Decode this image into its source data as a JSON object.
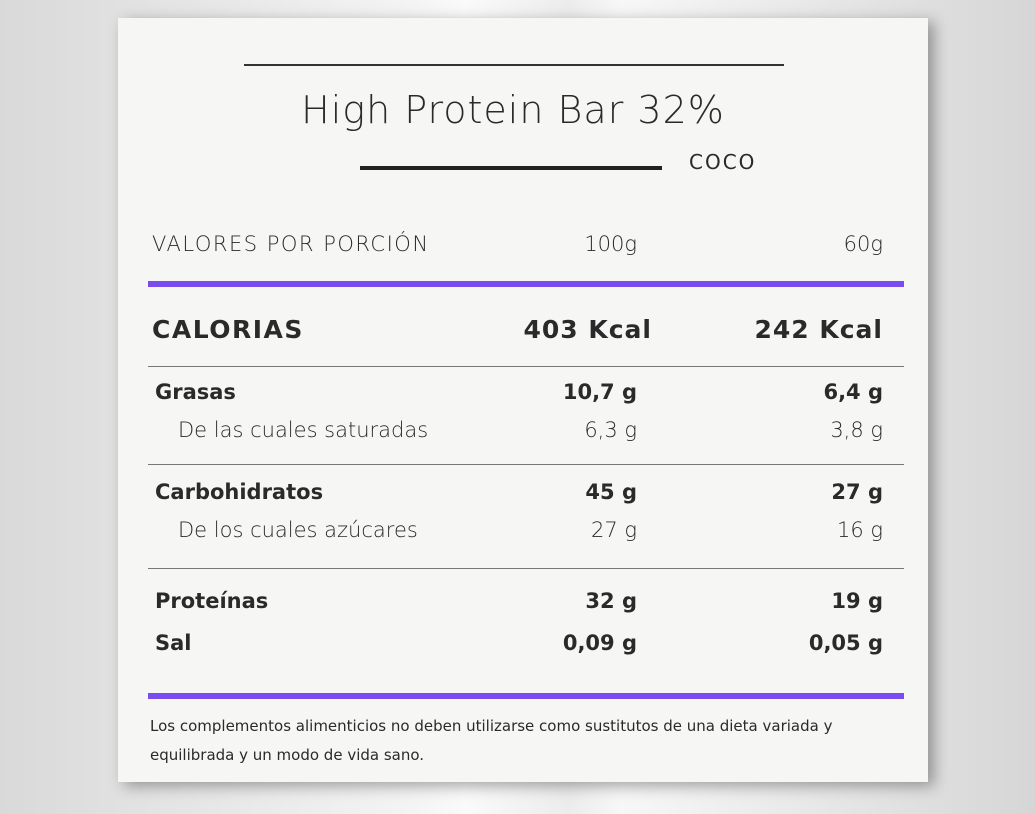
{
  "title": "High Protein Bar 32%",
  "flavor": "COCO",
  "header": {
    "label": "VALORES POR PORCIÓN",
    "col1": "100g",
    "col2": "60g"
  },
  "calories": {
    "label": "CALORIAS",
    "col1": "403 Kcal",
    "col2": "242 Kcal"
  },
  "groups": [
    {
      "rows": [
        {
          "label": "Grasas",
          "col1": "10,7 g",
          "col2": "6,4 g",
          "indent": false
        },
        {
          "label": "De las cuales saturadas",
          "col1": "6,3 g",
          "col2": "3,8 g",
          "indent": true
        }
      ]
    },
    {
      "rows": [
        {
          "label": "Carbohidratos",
          "col1": "45 g",
          "col2": "27 g",
          "indent": false
        },
        {
          "label": "De los cuales azúcares",
          "col1": "27 g",
          "col2": "16 g",
          "indent": true
        }
      ]
    },
    {
      "rows": [
        {
          "label": "Proteínas",
          "col1": "32 g",
          "col2": "19 g",
          "indent": false
        },
        {
          "label": "Sal",
          "col1": "0,09 g",
          "col2": "0,05 g",
          "indent": false
        }
      ]
    }
  ],
  "footnote": "Los complementos alimenticios no deben utilizarse como sustitutos de una dieta variada y equilibrada y un modo de vida sano."
}
